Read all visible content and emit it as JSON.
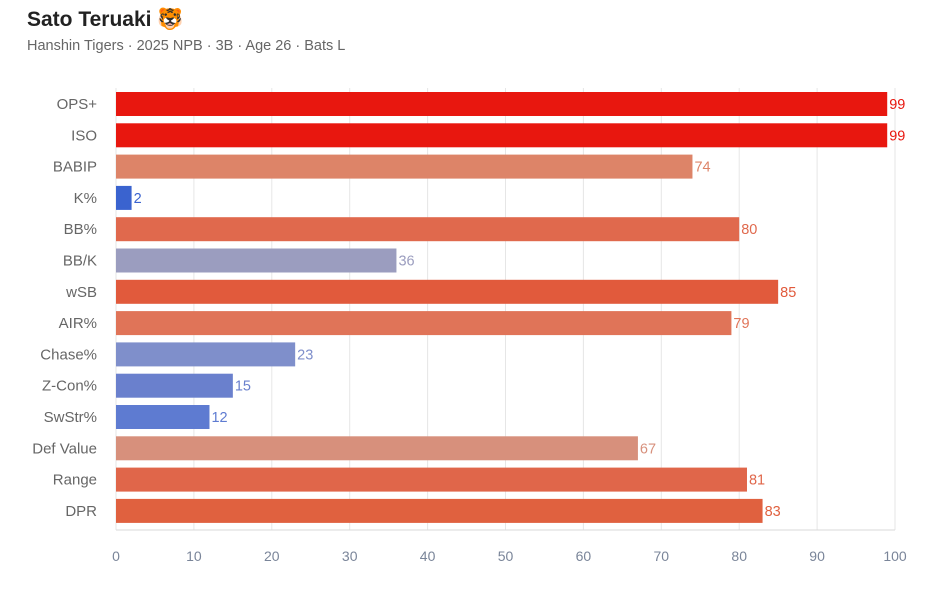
{
  "title": "Sato Teruaki",
  "emoji": "🐯",
  "subtitle": "Hanshin Tigers · 2025 NPB · 3B · Age 26 · Bats L",
  "chart_data": {
    "type": "bar",
    "orientation": "horizontal",
    "categories": [
      "OPS+",
      "ISO",
      "BABIP",
      "K%",
      "BB%",
      "BB/K",
      "wSB",
      "AIR%",
      "Chase%",
      "Z-Con%",
      "SwStr%",
      "Def Value",
      "Range",
      "DPR"
    ],
    "values": [
      99,
      99,
      74,
      2,
      80,
      36,
      85,
      79,
      23,
      15,
      12,
      67,
      81,
      83
    ],
    "colors": [
      "#e8170f",
      "#e8170f",
      "#dd8468",
      "#3a63cf",
      "#e0694d",
      "#9b9dbf",
      "#e15a3c",
      "#e07458",
      "#7f8fcb",
      "#6a80cd",
      "#5e7bd1",
      "#d7907c",
      "#e0664a",
      "#e0613f"
    ],
    "xlim": [
      0,
      100
    ],
    "xticks": [
      0,
      10,
      20,
      30,
      40,
      50,
      60,
      70,
      80,
      90,
      100
    ],
    "xlabel": "",
    "ylabel": "",
    "grid": true
  }
}
